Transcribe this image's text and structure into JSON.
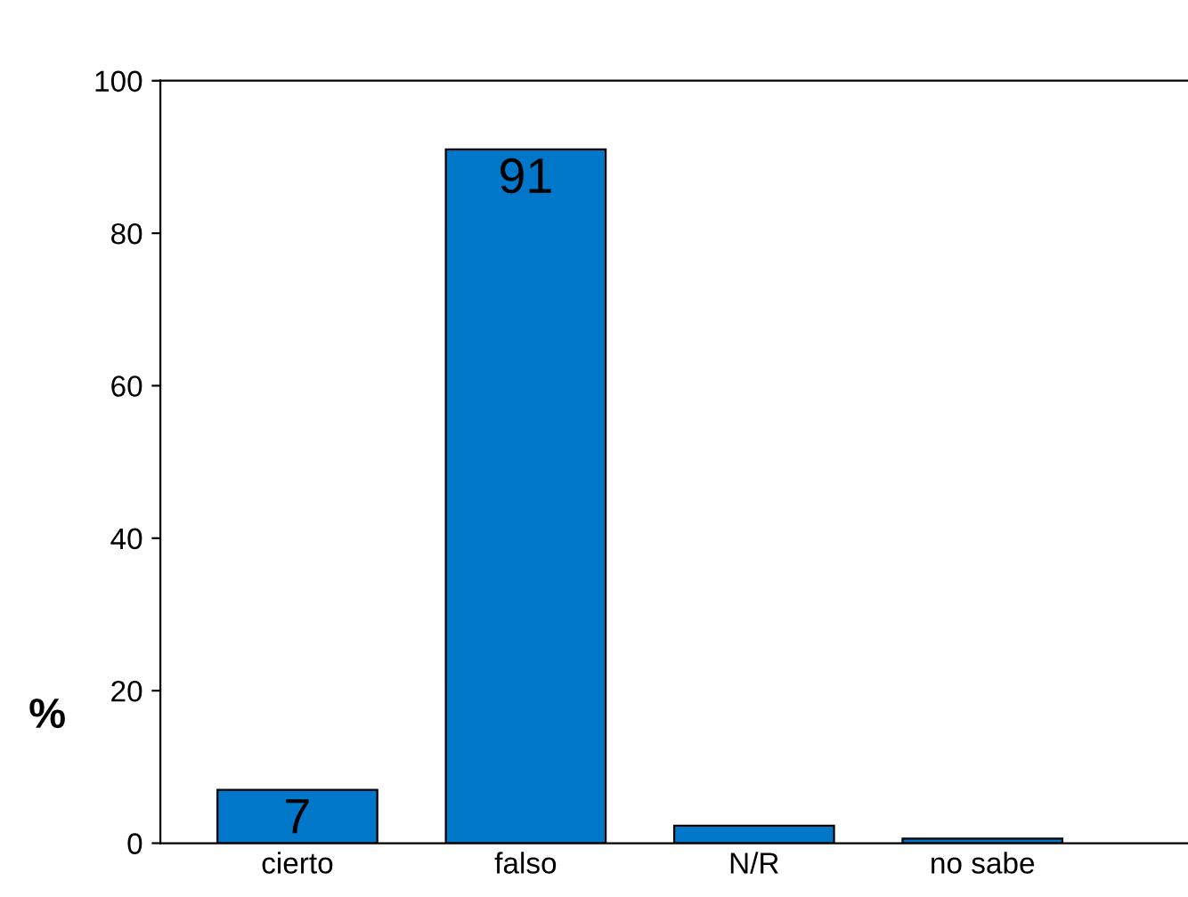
{
  "chart_data": {
    "type": "bar",
    "ylabel": "%",
    "categories": [
      "cierto",
      "falso",
      "N/R",
      "no sabe"
    ],
    "values": [
      7,
      91,
      2.3,
      0.6
    ],
    "value_labels": [
      "7",
      "91",
      null,
      null
    ],
    "color": "#0077c8",
    "ylim": [
      0,
      100
    ],
    "yticks": [
      0,
      20,
      40,
      60,
      80,
      100
    ],
    "grid": false
  }
}
